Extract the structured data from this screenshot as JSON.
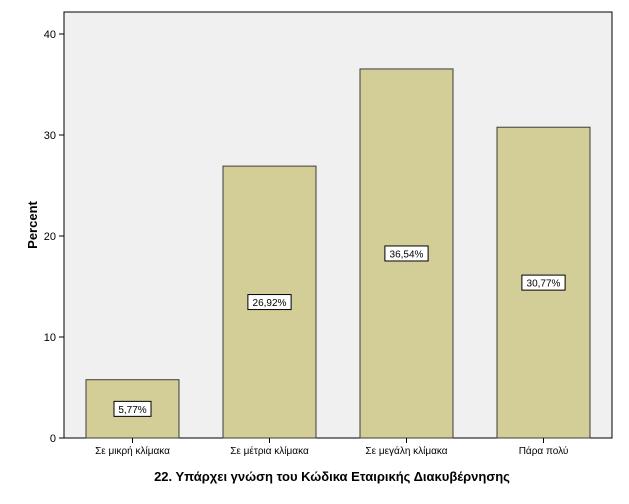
{
  "chart_data": {
    "type": "bar",
    "categories": [
      "Σε μικρή κλίμακα",
      "Σε μέτρια κλίμακα",
      "Σε μεγάλη κλίμακα",
      "Πάρα πολύ"
    ],
    "values": [
      5.77,
      26.92,
      36.54,
      30.77
    ],
    "data_labels": [
      "5,77%",
      "26,92%",
      "36,54%",
      "30,77%"
    ],
    "xlabel": "22. Υπάρχει γνώση του Κώδικα Εταιρικής Διακυβέρνησης",
    "ylabel": "Percent",
    "ylim": [
      0,
      40
    ],
    "yticks": [
      0,
      10,
      20,
      30,
      40
    ],
    "grid": false,
    "legend": "none",
    "colors": {
      "bar_fill": "#d3cd97",
      "bar_stroke": "#3c3c3c",
      "plot_background": "#f0f0f0",
      "axis": "#000000",
      "label_box_fill": "#ffffff"
    }
  }
}
